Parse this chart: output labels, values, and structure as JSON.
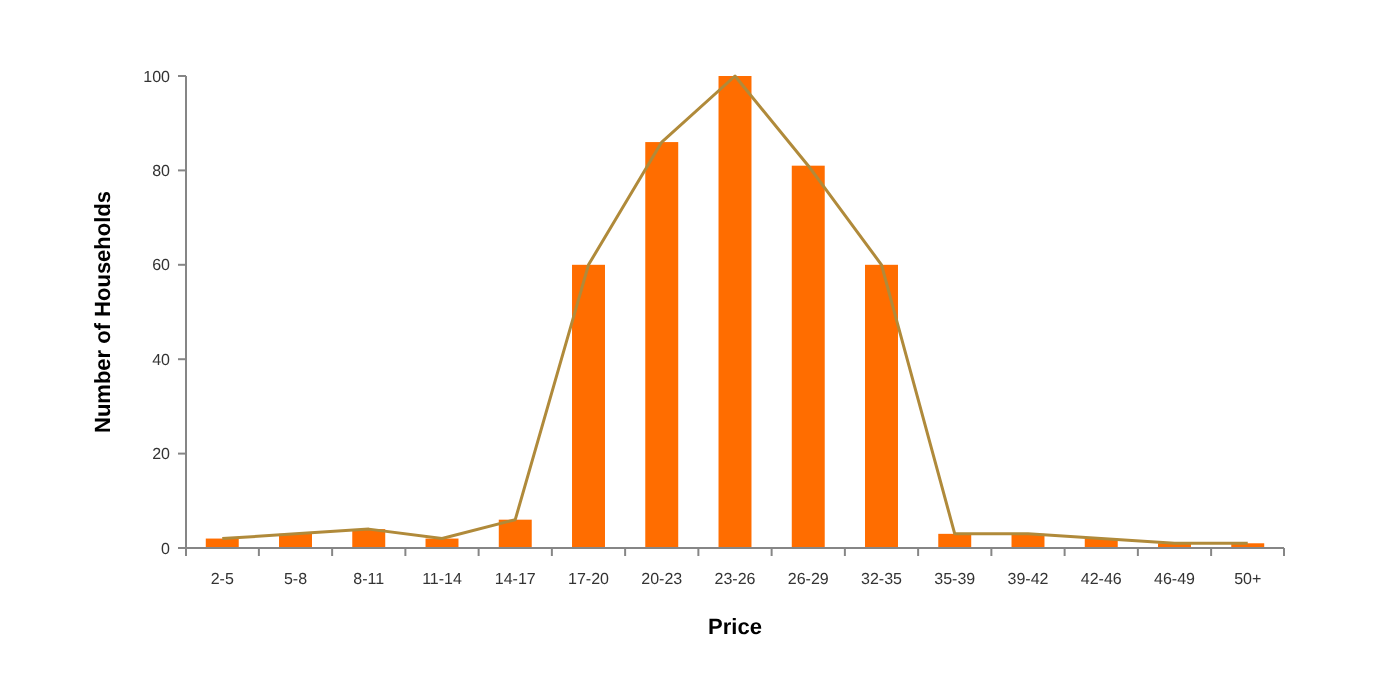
{
  "chart_data": {
    "type": "bar",
    "xlabel": "Price",
    "ylabel": "Number of Households",
    "categories": [
      "2-5",
      "5-8",
      "8-11",
      "11-14",
      "14-17",
      "17-20",
      "20-23",
      "23-26",
      "26-29",
      "32-35",
      "35-39",
      "39-42",
      "42-46",
      "46-49",
      "50+"
    ],
    "series": [
      {
        "color": "#ff6d00",
        "values": [
          2,
          3,
          4,
          2,
          6,
          60,
          86,
          100,
          81,
          60,
          3,
          3,
          2,
          1,
          1
        ]
      },
      {
        "type": "line",
        "color": "#b08a3a",
        "values": [
          2,
          3,
          4,
          2,
          6,
          60,
          86,
          100,
          81,
          60,
          3,
          3,
          2,
          1,
          1
        ],
        "marker": "none"
      }
    ],
    "ylim": [
      0,
      100
    ],
    "yticks": [
      0,
      20,
      40,
      60,
      80,
      100
    ],
    "grid": false
  }
}
